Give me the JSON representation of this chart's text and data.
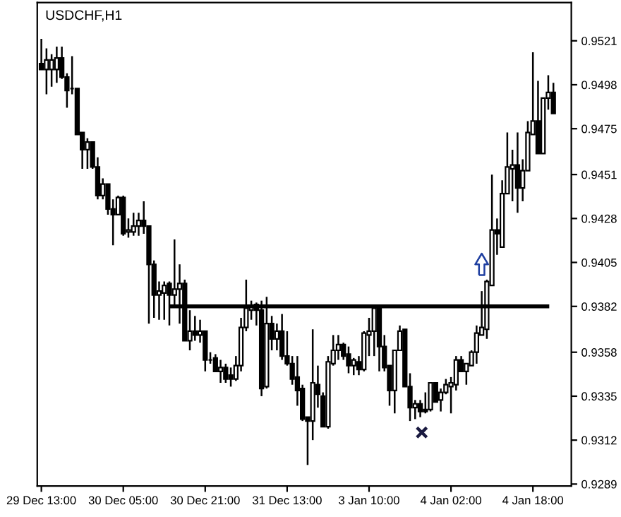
{
  "chart_data": {
    "type": "candlestick",
    "title": "USDCHF,H1",
    "color": "#000000",
    "categories": [
      "29 Dec 13:00",
      null,
      null,
      null,
      null,
      null,
      null,
      null,
      null,
      null,
      null,
      null,
      null,
      null,
      null,
      null,
      "30 Dec 05:00",
      null,
      null,
      null,
      null,
      null,
      null,
      null,
      null,
      null,
      null,
      null,
      null,
      null,
      null,
      null,
      "30 Dec 21:00",
      null,
      null,
      null,
      null,
      null,
      null,
      null,
      null,
      null,
      null,
      null,
      null,
      null,
      null,
      null,
      "31 Dec 13:00",
      null,
      null,
      null,
      null,
      null,
      null,
      null,
      null,
      null,
      null,
      null,
      null,
      null,
      null,
      null,
      "3 Jan 10:00",
      null,
      null,
      null,
      null,
      null,
      null,
      null,
      null,
      null,
      null,
      null,
      null,
      null,
      null,
      null,
      "4 Jan 02:00",
      null,
      null,
      null,
      null,
      null,
      null,
      null,
      null,
      null,
      null,
      null,
      null,
      null,
      null,
      null,
      "4 Jan 18:00",
      null,
      null,
      null,
      null
    ],
    "ohlc": [
      [
        0.9509,
        0.9522,
        0.9506,
        0.9506
      ],
      [
        0.9506,
        0.9517,
        0.9493,
        0.9511
      ],
      [
        0.9506,
        0.9514,
        0.9497,
        0.9511
      ],
      [
        0.9506,
        0.9518,
        0.9499,
        0.9512
      ],
      [
        0.9512,
        0.9518,
        0.9501,
        0.9502
      ],
      [
        0.9502,
        0.9504,
        0.9486,
        0.9495
      ],
      [
        0.9496,
        0.9513,
        0.9493,
        0.9496
      ],
      [
        0.9496,
        0.9496,
        0.9472,
        0.9472
      ],
      [
        0.9473,
        0.9473,
        0.9454,
        0.9464
      ],
      [
        0.9464,
        0.947,
        0.9454,
        0.9468
      ],
      [
        0.9468,
        0.9468,
        0.9454,
        0.9455
      ],
      [
        0.9455,
        0.946,
        0.9438,
        0.944
      ],
      [
        0.944,
        0.9449,
        0.9438,
        0.9446
      ],
      [
        0.9446,
        0.9446,
        0.943,
        0.9433
      ],
      [
        0.9433,
        0.9438,
        0.9414,
        0.943
      ],
      [
        0.943,
        0.944,
        0.943,
        0.9439
      ],
      [
        0.9439,
        0.944,
        0.9419,
        0.942
      ],
      [
        0.9421,
        0.9428,
        0.9418,
        0.9422
      ],
      [
        0.9421,
        0.9431,
        0.9419,
        0.9424
      ],
      [
        0.9424,
        0.9431,
        0.9419,
        0.9427
      ],
      [
        0.9427,
        0.9437,
        0.942,
        0.9424
      ],
      [
        0.9424,
        0.9424,
        0.9373,
        0.9404
      ],
      [
        0.9404,
        0.9406,
        0.9376,
        0.9388
      ],
      [
        0.9388,
        0.9395,
        0.9375,
        0.939
      ],
      [
        0.9389,
        0.9395,
        0.9375,
        0.9393
      ],
      [
        0.9394,
        0.9395,
        0.9372,
        0.9388
      ],
      [
        0.9388,
        0.9417,
        0.9383,
        0.9391
      ],
      [
        0.9391,
        0.9404,
        0.9373,
        0.9394
      ],
      [
        0.9394,
        0.9396,
        0.9364,
        0.9364
      ],
      [
        0.9364,
        0.938,
        0.9359,
        0.9369
      ],
      [
        0.9369,
        0.9377,
        0.9364,
        0.9367
      ],
      [
        0.9367,
        0.9375,
        0.9363,
        0.9369
      ],
      [
        0.9369,
        0.9369,
        0.9348,
        0.9354
      ],
      [
        0.9354,
        0.9358,
        0.9352,
        0.9354
      ],
      [
        0.9355,
        0.9357,
        0.9348,
        0.9348
      ],
      [
        0.9348,
        0.9354,
        0.9342,
        0.935
      ],
      [
        0.935,
        0.9352,
        0.9342,
        0.9344
      ],
      [
        0.9346,
        0.935,
        0.934,
        0.9344
      ],
      [
        0.9344,
        0.9356,
        0.9343,
        0.9351
      ],
      [
        0.9351,
        0.9376,
        0.9348,
        0.9371
      ],
      [
        0.9371,
        0.9396,
        0.9369,
        0.9381
      ],
      [
        0.938,
        0.9385,
        0.9375,
        0.9382
      ],
      [
        0.9383,
        0.9384,
        0.9372,
        0.938
      ],
      [
        0.938,
        0.9385,
        0.9335,
        0.9339
      ],
      [
        0.934,
        0.9387,
        0.9339,
        0.9373
      ],
      [
        0.9373,
        0.9377,
        0.9359,
        0.9365
      ],
      [
        0.9365,
        0.9373,
        0.9359,
        0.9369
      ],
      [
        0.9369,
        0.9378,
        0.9354,
        0.9356
      ],
      [
        0.9356,
        0.9369,
        0.9351,
        0.9352
      ],
      [
        0.9352,
        0.9356,
        0.9341,
        0.9344
      ],
      [
        0.9345,
        0.9356,
        0.933,
        0.9338
      ],
      [
        0.9339,
        0.9341,
        0.9322,
        0.9323
      ],
      [
        0.9324,
        0.9324,
        0.9299,
        0.9322
      ],
      [
        0.9322,
        0.937,
        0.9312,
        0.9342
      ],
      [
        0.9341,
        0.9351,
        0.9329,
        0.9336
      ],
      [
        0.9335,
        0.9337,
        0.9319,
        0.9319
      ],
      [
        0.9319,
        0.9356,
        0.9318,
        0.9353
      ],
      [
        0.9352,
        0.9367,
        0.9351,
        0.9359
      ],
      [
        0.9359,
        0.9367,
        0.9354,
        0.9362
      ],
      [
        0.9362,
        0.9363,
        0.9354,
        0.9356
      ],
      [
        0.9357,
        0.9361,
        0.9347,
        0.9351
      ],
      [
        0.9351,
        0.9355,
        0.9346,
        0.9354
      ],
      [
        0.9353,
        0.9356,
        0.9346,
        0.9349
      ],
      [
        0.9349,
        0.9369,
        0.9348,
        0.9368
      ],
      [
        0.9367,
        0.9376,
        0.9356,
        0.9369
      ],
      [
        0.9369,
        0.9382,
        0.9356,
        0.9381
      ],
      [
        0.9381,
        0.9382,
        0.9348,
        0.9361
      ],
      [
        0.9361,
        0.9367,
        0.9348,
        0.935
      ],
      [
        0.9351,
        0.9351,
        0.933,
        0.9338
      ],
      [
        0.9338,
        0.9359,
        0.9326,
        0.9359
      ],
      [
        0.9359,
        0.9372,
        0.9359,
        0.9369
      ],
      [
        0.937,
        0.937,
        0.934,
        0.934
      ],
      [
        0.934,
        0.9347,
        0.9322,
        0.9329
      ],
      [
        0.9329,
        0.9333,
        0.9323,
        0.9331
      ],
      [
        0.9331,
        0.9333,
        0.9324,
        0.9327
      ],
      [
        0.9328,
        0.9337,
        0.9326,
        0.9327
      ],
      [
        0.9328,
        0.9342,
        0.9327,
        0.9342
      ],
      [
        0.9342,
        0.9342,
        0.9332,
        0.9332
      ],
      [
        0.9333,
        0.9339,
        0.9327,
        0.9337
      ],
      [
        0.9337,
        0.9344,
        0.9336,
        0.9341
      ],
      [
        0.934,
        0.9345,
        0.9326,
        0.9342
      ],
      [
        0.9341,
        0.9356,
        0.9338,
        0.9354
      ],
      [
        0.9354,
        0.9356,
        0.9348,
        0.9348
      ],
      [
        0.9348,
        0.9352,
        0.9341,
        0.9352
      ],
      [
        0.9351,
        0.9359,
        0.9351,
        0.9358
      ],
      [
        0.9358,
        0.9372,
        0.9352,
        0.9368
      ],
      [
        0.9367,
        0.939,
        0.9367,
        0.9371
      ],
      [
        0.937,
        0.9396,
        0.9365,
        0.9395
      ],
      [
        0.9393,
        0.9451,
        0.9393,
        0.9422
      ],
      [
        0.9422,
        0.9428,
        0.9409,
        0.942
      ],
      [
        0.9413,
        0.9448,
        0.9413,
        0.9441
      ],
      [
        0.9441,
        0.9473,
        0.9441,
        0.9455
      ],
      [
        0.9454,
        0.9464,
        0.9437,
        0.9456
      ],
      [
        0.9456,
        0.9473,
        0.9431,
        0.9444
      ],
      [
        0.9444,
        0.9459,
        0.9437,
        0.9453
      ],
      [
        0.9453,
        0.9479,
        0.9453,
        0.9473
      ],
      [
        0.9472,
        0.9515,
        0.9472,
        0.9479
      ],
      [
        0.9479,
        0.95,
        0.9462,
        0.9462
      ],
      [
        0.9462,
        0.9491,
        0.9462,
        0.9491
      ],
      [
        0.9491,
        0.9503,
        0.9485,
        0.9494
      ],
      [
        0.9494,
        0.9499,
        0.9483,
        0.9483
      ]
    ],
    "ylim": [
      0.9288,
      0.9541
    ],
    "yticks": [
      0.9289,
      0.9312,
      0.9335,
      0.9358,
      0.9382,
      0.9405,
      0.9428,
      0.9451,
      0.9475,
      0.9498,
      0.9521
    ],
    "ref_lines": [
      {
        "axis": "y",
        "value": 0.9382,
        "color": "#000000"
      }
    ],
    "grid": false,
    "legend": false
  }
}
